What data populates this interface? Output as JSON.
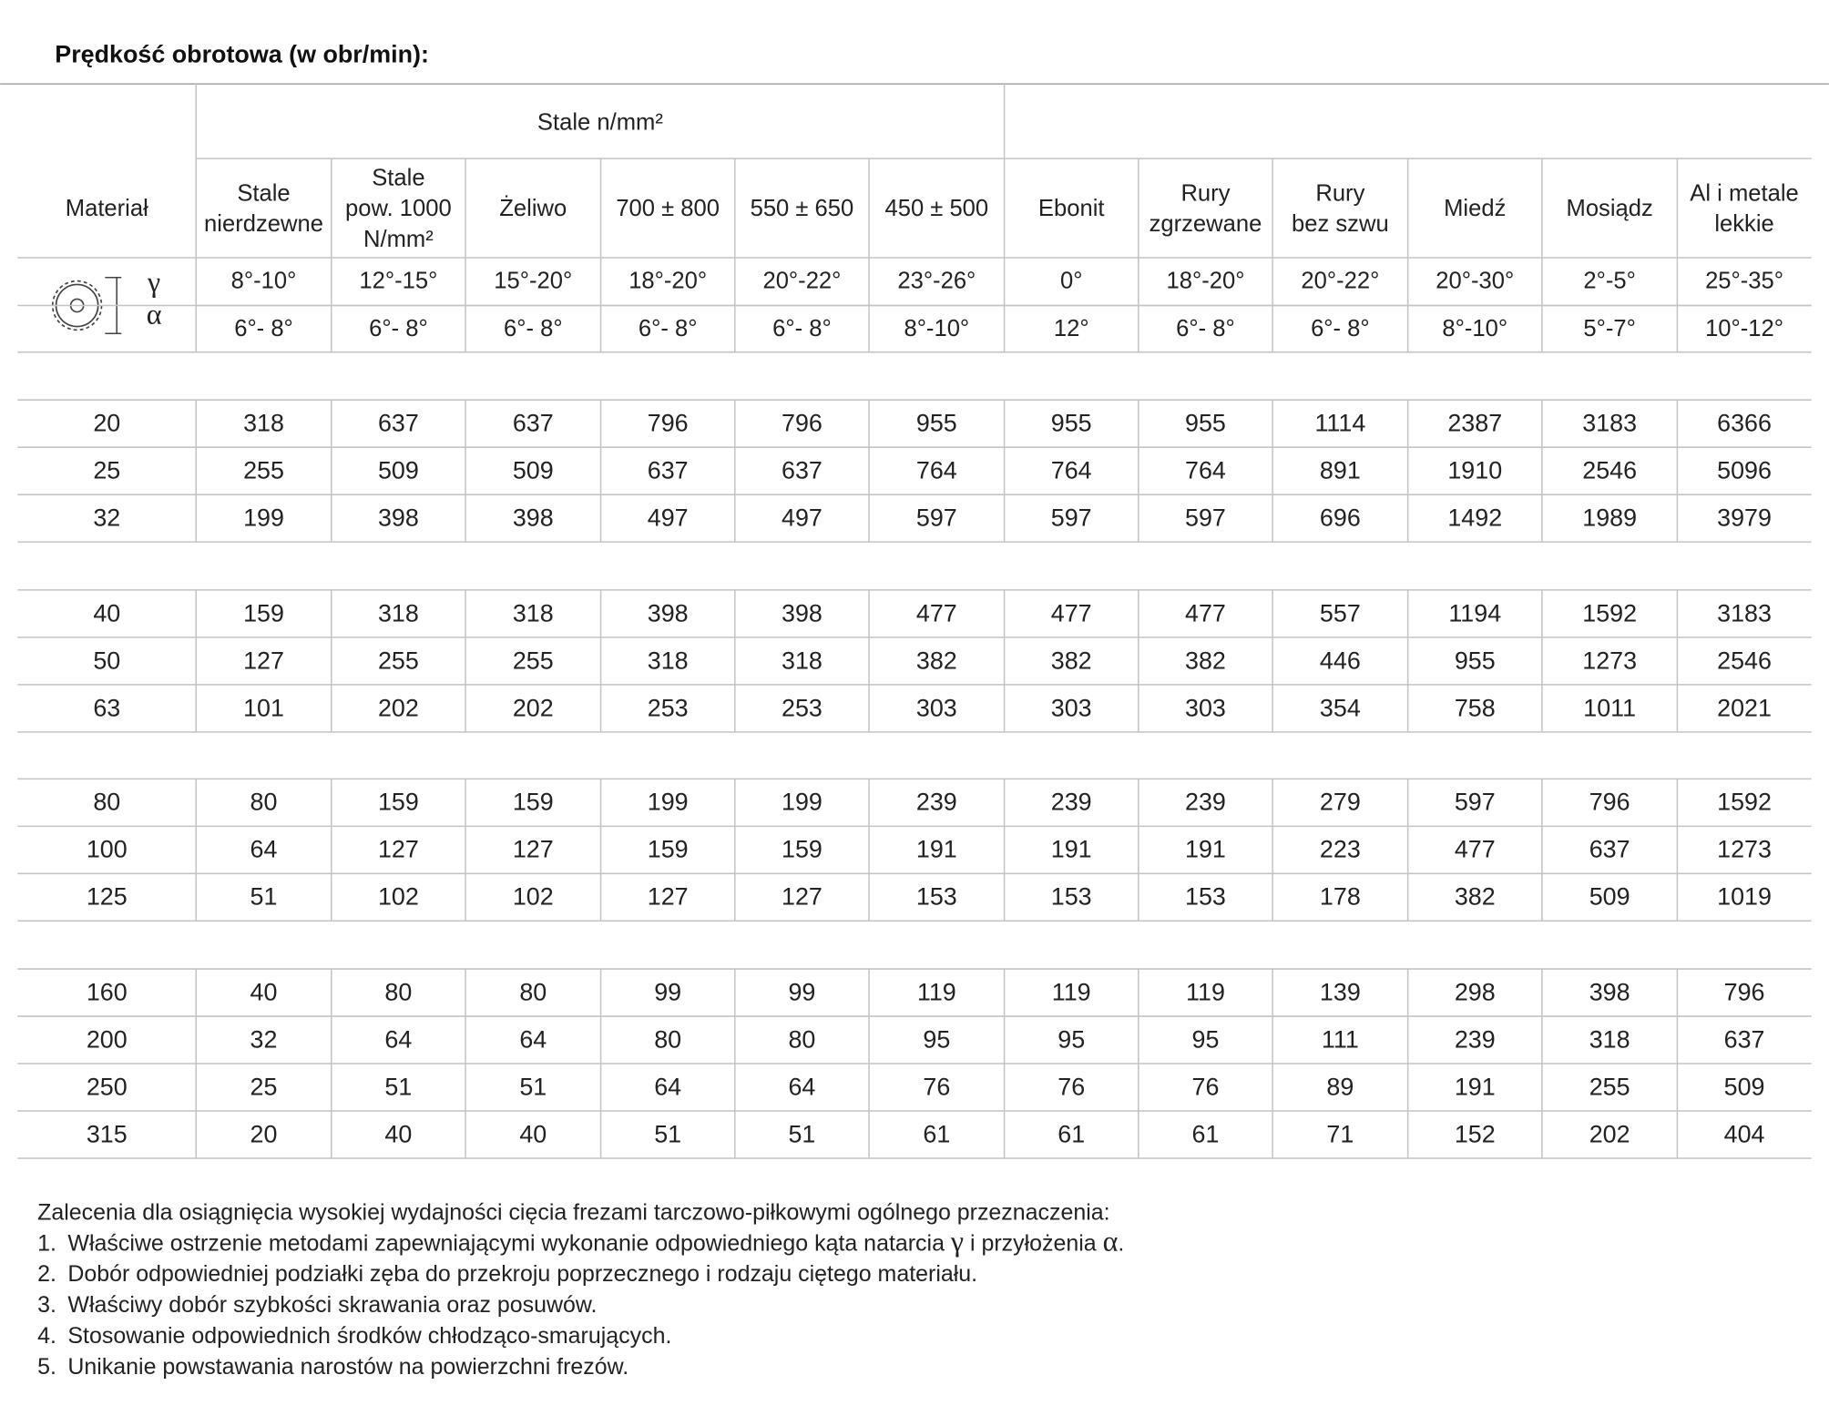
{
  "header": {
    "title": "Prędkość obrotowa (w obr/min):"
  },
  "table": {
    "group_header": "Stale n/mm²",
    "columns": [
      [
        "Materiał"
      ],
      [
        "Stale",
        "nierdzewne"
      ],
      [
        "Stale",
        "pow. 1000",
        "N/mm²"
      ],
      [
        "Żeliwo"
      ],
      [
        "700 ± 800"
      ],
      [
        "550 ± 650"
      ],
      [
        "450 ± 500"
      ],
      [
        "Ebonit"
      ],
      [
        "Rury",
        "zgrzewane"
      ],
      [
        "Rury",
        "bez szwu"
      ],
      [
        "Miedź"
      ],
      [
        "Mosiądz"
      ],
      [
        "Al i metale",
        "lekkie"
      ]
    ],
    "angle_symbols": [
      "γ",
      "α"
    ],
    "angles_gamma": [
      "8°-10°",
      "12°-15°",
      "15°-20°",
      "18°-20°",
      "20°-22°",
      "23°-26°",
      "0°",
      "18°-20°",
      "20°-22°",
      "20°-30°",
      "2°-5°",
      "25°-35°"
    ],
    "angles_alpha": [
      "6°- 8°",
      "6°- 8°",
      "6°- 8°",
      "6°- 8°",
      "6°- 8°",
      "8°-10°",
      "12°",
      "6°- 8°",
      "6°- 8°",
      "8°-10°",
      "5°-7°",
      "10°-12°"
    ],
    "row_groups": [
      [
        [
          20,
          318,
          637,
          637,
          796,
          796,
          955,
          955,
          955,
          1114,
          2387,
          3183,
          6366
        ],
        [
          25,
          255,
          509,
          509,
          637,
          637,
          764,
          764,
          764,
          891,
          1910,
          2546,
          5096
        ],
        [
          32,
          199,
          398,
          398,
          497,
          497,
          597,
          597,
          597,
          696,
          1492,
          1989,
          3979
        ]
      ],
      [
        [
          40,
          159,
          318,
          318,
          398,
          398,
          477,
          477,
          477,
          557,
          1194,
          1592,
          3183
        ],
        [
          50,
          127,
          255,
          255,
          318,
          318,
          382,
          382,
          382,
          446,
          955,
          1273,
          2546
        ],
        [
          63,
          101,
          202,
          202,
          253,
          253,
          303,
          303,
          303,
          354,
          758,
          1011,
          2021
        ]
      ],
      [
        [
          80,
          80,
          159,
          159,
          199,
          199,
          239,
          239,
          239,
          279,
          597,
          796,
          1592
        ],
        [
          100,
          64,
          127,
          127,
          159,
          159,
          191,
          191,
          191,
          223,
          477,
          637,
          1273
        ],
        [
          125,
          51,
          102,
          102,
          127,
          127,
          153,
          153,
          153,
          178,
          382,
          509,
          1019
        ]
      ],
      [
        [
          160,
          40,
          80,
          80,
          99,
          99,
          119,
          119,
          119,
          139,
          298,
          398,
          796
        ],
        [
          200,
          32,
          64,
          64,
          80,
          80,
          95,
          95,
          95,
          111,
          239,
          318,
          637
        ],
        [
          250,
          25,
          51,
          51,
          64,
          64,
          76,
          76,
          76,
          89,
          191,
          255,
          509
        ],
        [
          315,
          20,
          40,
          40,
          51,
          51,
          61,
          61,
          61,
          71,
          152,
          202,
          404
        ]
      ]
    ]
  },
  "notes": {
    "heading": "Zalecenia dla osiągnięcia wysokiej wydajności cięcia frezami tarczowo-piłkowymi ogólnego przeznaczenia:",
    "items": [
      {
        "number": "1.",
        "parts": [
          "Właściwe ostrzenie metodami zapewniającymi wykonanie odpowiedniego kąta natarcia ",
          "γ",
          " i przyłożenia ",
          "α",
          "."
        ]
      },
      {
        "number": "2.",
        "parts": [
          "Dobór odpowiedniej podziałki zęba do przekroju poprzecznego i rodzaju ciętego materiału."
        ]
      },
      {
        "number": "3.",
        "parts": [
          "Właściwy dobór szybkości skrawania oraz posuwów."
        ]
      },
      {
        "number": "4.",
        "parts": [
          "Stosowanie odpowiednich środków chłodząco-smarujących."
        ]
      },
      {
        "number": "5.",
        "parts": [
          "Unikanie powstawania narostów na powierzchni frezów."
        ]
      }
    ]
  }
}
